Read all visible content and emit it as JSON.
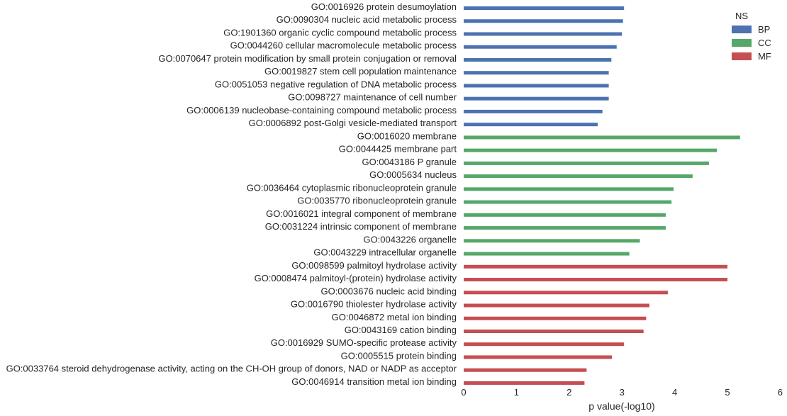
{
  "chart_data": {
    "type": "bar",
    "orientation": "horizontal",
    "xlabel": "p value(-log10)",
    "ylabel": "",
    "xlim": [
      0,
      6
    ],
    "xticks": [
      0,
      1,
      2,
      3,
      4,
      5,
      6
    ],
    "grid": false,
    "legend": {
      "title": "NS",
      "placement": "top-right"
    },
    "series": [
      {
        "name": "BP",
        "color": "#4c72b0"
      },
      {
        "name": "CC",
        "color": "#55a868"
      },
      {
        "name": "MF",
        "color": "#c44e52"
      }
    ],
    "categories": [
      "GO:0016926 protein desumoylation",
      "GO:0090304 nucleic acid metabolic process",
      "GO:1901360 organic cyclic compound metabolic process",
      "GO:0044260 cellular macromolecule metabolic process",
      "GO:0070647 protein modification by small protein conjugation or removal",
      "GO:0019827 stem cell population maintenance",
      "GO:0051053 negative regulation of DNA metabolic process",
      "GO:0098727 maintenance of cell number",
      "GO:0006139 nucleobase-containing compound metabolic process",
      "GO:0006892 post-Golgi vesicle-mediated transport",
      "GO:0016020 membrane",
      "GO:0044425 membrane part",
      "GO:0043186 P granule",
      "GO:0005634 nucleus",
      "GO:0036464 cytoplasmic ribonucleoprotein granule",
      "GO:0035770 ribonucleoprotein granule",
      "GO:0016021 integral component of membrane",
      "GO:0031224 intrinsic component of membrane",
      "GO:0043226 organelle",
      "GO:0043229 intracellular organelle",
      "GO:0098599 palmitoyl hydrolase activity",
      "GO:0008474 palmitoyl-(protein) hydrolase activity",
      "GO:0003676 nucleic acid binding",
      "GO:0016790 thiolester hydrolase activity",
      "GO:0046872 metal ion binding",
      "GO:0043169 cation binding",
      "GO:0016929 SUMO-specific protease activity",
      "GO:0005515 protein binding",
      "GO:0033764 steroid dehydrogenase activity, acting on the CH-OH group of donors, NAD or NADP as acceptor",
      "GO:0046914 transition metal ion binding"
    ],
    "values": [
      3.04,
      3.02,
      3.0,
      2.9,
      2.8,
      2.75,
      2.75,
      2.75,
      2.63,
      2.54,
      5.24,
      4.8,
      4.65,
      4.34,
      3.98,
      3.94,
      3.83,
      3.83,
      3.34,
      3.14,
      5.0,
      5.0,
      3.87,
      3.52,
      3.46,
      3.41,
      3.04,
      2.81,
      2.33,
      2.29
    ],
    "namespaces": [
      "BP",
      "BP",
      "BP",
      "BP",
      "BP",
      "BP",
      "BP",
      "BP",
      "BP",
      "BP",
      "CC",
      "CC",
      "CC",
      "CC",
      "CC",
      "CC",
      "CC",
      "CC",
      "CC",
      "CC",
      "MF",
      "MF",
      "MF",
      "MF",
      "MF",
      "MF",
      "MF",
      "MF",
      "MF",
      "MF"
    ]
  }
}
